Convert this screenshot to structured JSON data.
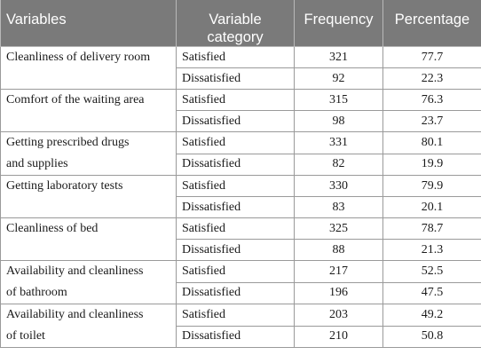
{
  "headers": {
    "variables": "Variables",
    "category_line1": "Variable",
    "category_line2": "category",
    "frequency": "Frequency",
    "percentage": "Percentage"
  },
  "rows": [
    {
      "variable": "Cleanliness of delivery room",
      "satisfied": {
        "category": "Satisfied",
        "frequency": "321",
        "percentage": "77.7"
      },
      "dissatisfied": {
        "category": "Dissatisfied",
        "frequency": "92",
        "percentage": "22.3"
      }
    },
    {
      "variable": "Comfort of the waiting area",
      "satisfied": {
        "category": "Satisfied",
        "frequency": "315",
        "percentage": "76.3"
      },
      "dissatisfied": {
        "category": "Dissatisfied",
        "frequency": "98",
        "percentage": "23.7"
      }
    },
    {
      "variable": "Getting prescribed drugs\nand supplies",
      "satisfied": {
        "category": "Satisfied",
        "frequency": "331",
        "percentage": "80.1"
      },
      "dissatisfied": {
        "category": "Dissatisfied",
        "frequency": "82",
        "percentage": "19.9"
      }
    },
    {
      "variable": "Getting laboratory tests",
      "satisfied": {
        "category": "Satisfied",
        "frequency": "330",
        "percentage": "79.9"
      },
      "dissatisfied": {
        "category": "Dissatisfied",
        "frequency": "83",
        "percentage": "20.1"
      }
    },
    {
      "variable": "Cleanliness of bed",
      "satisfied": {
        "category": "Satisfied",
        "frequency": "325",
        "percentage": "78.7"
      },
      "dissatisfied": {
        "category": "Dissatisfied",
        "frequency": "88",
        "percentage": "21.3"
      }
    },
    {
      "variable": "Availability and cleanliness\nof bathroom",
      "satisfied": {
        "category": "Satisfied",
        "frequency": "217",
        "percentage": "52.5"
      },
      "dissatisfied": {
        "category": "Dissatisfied",
        "frequency": "196",
        "percentage": "47.5"
      }
    },
    {
      "variable": "Availability and cleanliness\nof toilet",
      "satisfied": {
        "category": "Satisfied",
        "frequency": "203",
        "percentage": "49.2"
      },
      "dissatisfied": {
        "category": "Dissatisfied",
        "frequency": "210",
        "percentage": "50.8"
      }
    }
  ]
}
